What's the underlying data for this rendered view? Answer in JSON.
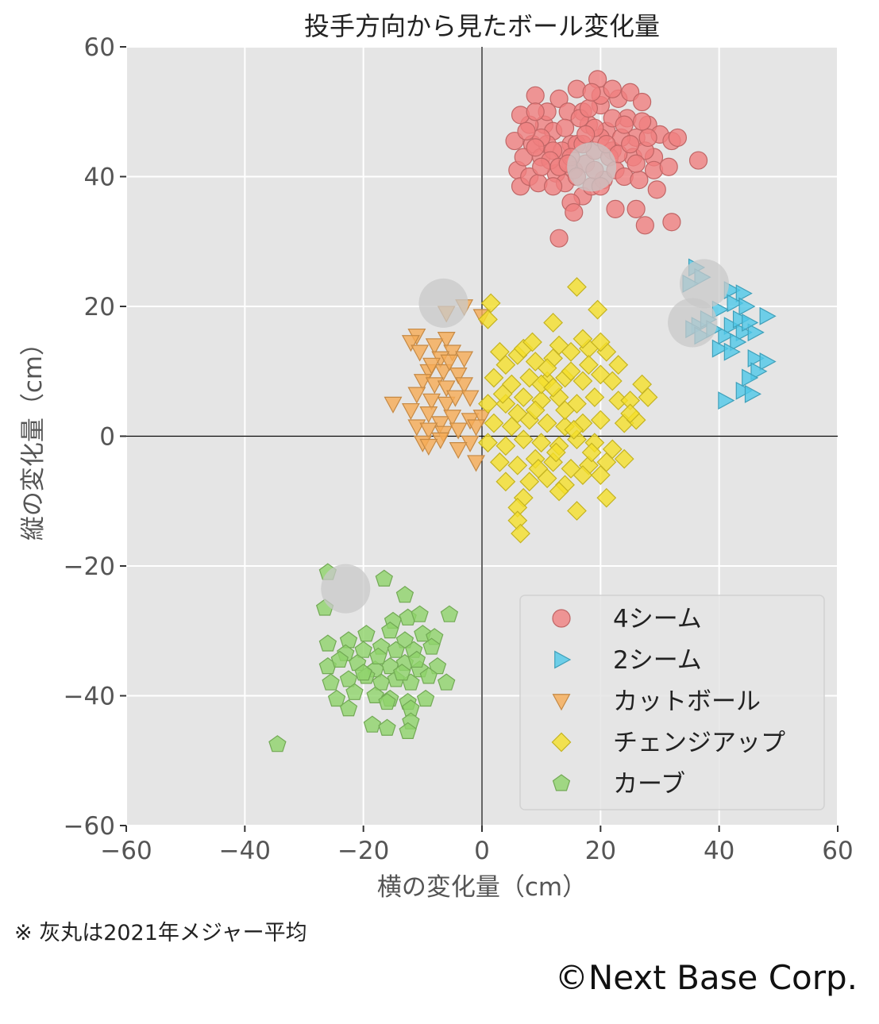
{
  "footnote": "※ 灰丸は2021年メジャー平均",
  "copyright": "©Next Base Corp.",
  "colors": {
    "panel_bg": "#e5e5e5",
    "grid": "#ffffff",
    "four_seam": "#f08080",
    "two_seam": "#4fc8e8",
    "cutter": "#f6ab55",
    "changeup": "#f5e02a",
    "curve": "#8fd36a",
    "league_avg": "#c8c8c8"
  },
  "chart_data": {
    "type": "scatter",
    "title": "投手方向から見たボール変化量",
    "xlabel": "横の変化量（cm）",
    "ylabel": "縦の変化量（cm）",
    "xlim": [
      -60,
      60
    ],
    "ylim": [
      -60,
      60
    ],
    "x_ticks": [
      "−60",
      "−40",
      "−20",
      "0",
      "20",
      "40",
      "60"
    ],
    "y_ticks": [
      "60",
      "40",
      "20",
      "0",
      "−20",
      "−40",
      "−60"
    ],
    "grid": true,
    "legend_position": "bottom-right",
    "series": [
      {
        "name": "4シーム",
        "marker": "circle",
        "color_key": "four_seam",
        "points": [
          [
            8.5,
            45
          ],
          [
            9,
            52.5
          ],
          [
            10.5,
            48
          ],
          [
            12,
            47
          ],
          [
            13,
            52
          ],
          [
            14.5,
            50
          ],
          [
            15,
            45
          ],
          [
            16,
            53.5
          ],
          [
            17,
            50
          ],
          [
            18,
            48
          ],
          [
            19.5,
            55
          ],
          [
            20,
            51
          ],
          [
            21,
            47
          ],
          [
            22,
            44
          ],
          [
            23,
            52
          ],
          [
            24.5,
            49
          ],
          [
            25,
            53
          ],
          [
            26,
            46
          ],
          [
            27,
            51.5
          ],
          [
            28,
            48
          ],
          [
            29,
            43
          ],
          [
            30,
            46.5
          ],
          [
            32,
            45.5
          ],
          [
            33,
            46
          ],
          [
            36.5,
            42.5
          ],
          [
            5.5,
            45.5
          ],
          [
            6,
            41
          ],
          [
            6.5,
            38.5
          ],
          [
            7,
            43
          ],
          [
            8,
            40
          ],
          [
            9.5,
            39
          ],
          [
            10,
            43
          ],
          [
            11,
            45
          ],
          [
            12.5,
            40.5
          ],
          [
            13.5,
            44
          ],
          [
            14,
            39
          ],
          [
            15.5,
            41
          ],
          [
            17,
            37
          ],
          [
            17.5,
            42
          ],
          [
            18.5,
            38.5
          ],
          [
            19,
            44
          ],
          [
            20.5,
            39.5
          ],
          [
            21.5,
            43
          ],
          [
            22.5,
            41
          ],
          [
            23.5,
            46
          ],
          [
            24,
            40
          ],
          [
            25.5,
            43
          ],
          [
            26.5,
            39.5
          ],
          [
            27.5,
            44
          ],
          [
            29,
            41
          ],
          [
            29.5,
            38
          ],
          [
            31.5,
            41.5
          ],
          [
            32,
            33
          ],
          [
            22.5,
            35
          ],
          [
            26,
            35
          ],
          [
            27.5,
            32.5
          ],
          [
            15,
            36
          ],
          [
            15.5,
            34.5
          ],
          [
            13,
            30.5
          ],
          [
            16.5,
            49
          ],
          [
            18,
            50.5
          ],
          [
            20,
            46
          ],
          [
            22,
            49
          ],
          [
            11,
            50
          ],
          [
            12,
            44
          ],
          [
            14,
            47.5
          ],
          [
            16,
            45
          ],
          [
            19,
            47.5
          ],
          [
            21,
            45
          ],
          [
            24,
            48
          ],
          [
            26,
            42
          ],
          [
            10,
            46
          ],
          [
            8,
            48
          ],
          [
            6.5,
            49.5
          ],
          [
            7.5,
            47
          ],
          [
            9,
            44.5
          ],
          [
            11.5,
            42.5
          ],
          [
            13,
            41.5
          ],
          [
            15,
            43
          ],
          [
            17,
            45
          ],
          [
            19,
            41
          ],
          [
            23,
            43.5
          ],
          [
            25,
            45
          ],
          [
            28,
            46
          ],
          [
            27,
            48.5
          ],
          [
            20,
            52.5
          ],
          [
            18.5,
            53
          ],
          [
            22,
            53.5
          ],
          [
            17.5,
            46.5
          ],
          [
            14.5,
            42
          ],
          [
            16,
            40
          ],
          [
            20,
            38.5
          ],
          [
            12,
            38.5
          ],
          [
            10,
            41.5
          ],
          [
            9,
            50
          ]
        ]
      },
      {
        "name": "2シーム",
        "marker": "triangle-right",
        "color_key": "two_seam",
        "points": [
          [
            36,
            26
          ],
          [
            37,
            24.5
          ],
          [
            35,
            23.5
          ],
          [
            42,
            22.5
          ],
          [
            44,
            22
          ],
          [
            42.5,
            20.5
          ],
          [
            40,
            19.5
          ],
          [
            44.5,
            20
          ],
          [
            48,
            18.5
          ],
          [
            36.5,
            17
          ],
          [
            38,
            18
          ],
          [
            42,
            17
          ],
          [
            44,
            16
          ],
          [
            46,
            16
          ],
          [
            41,
            15.5
          ],
          [
            43,
            14.5
          ],
          [
            40,
            13.5
          ],
          [
            42,
            13
          ],
          [
            46,
            12
          ],
          [
            48,
            11.5
          ],
          [
            46.5,
            10
          ],
          [
            45,
            9
          ],
          [
            44,
            7
          ],
          [
            45.5,
            6.5
          ],
          [
            41,
            5.5
          ],
          [
            35.5,
            16.5
          ],
          [
            37,
            15.5
          ],
          [
            39,
            16.5
          ],
          [
            43.5,
            18
          ],
          [
            45,
            17.5
          ]
        ]
      },
      {
        "name": "カットボール",
        "marker": "triangle-down",
        "color_key": "cutter",
        "points": [
          [
            -6,
            19
          ],
          [
            -3,
            20
          ],
          [
            0,
            18.5
          ],
          [
            -11,
            15.5
          ],
          [
            -12,
            14.5
          ],
          [
            -10.5,
            13
          ],
          [
            -8,
            14
          ],
          [
            -6,
            15
          ],
          [
            -5,
            13
          ],
          [
            -7,
            12
          ],
          [
            -9,
            10
          ],
          [
            -6.5,
            10
          ],
          [
            -4,
            9.5
          ],
          [
            -10,
            8.5
          ],
          [
            -8,
            8
          ],
          [
            -6,
            7.5
          ],
          [
            -3,
            8
          ],
          [
            -11,
            6.5
          ],
          [
            -8.5,
            5.5
          ],
          [
            -6,
            5
          ],
          [
            -4.5,
            6
          ],
          [
            -2,
            6
          ],
          [
            -15,
            5
          ],
          [
            -12,
            4
          ],
          [
            -9,
            3.5
          ],
          [
            -7,
            2
          ],
          [
            -5,
            3
          ],
          [
            -2,
            2.5
          ],
          [
            0,
            3
          ],
          [
            -11,
            1.5
          ],
          [
            -9,
            1
          ],
          [
            -6.5,
            0.5
          ],
          [
            -4,
            1
          ],
          [
            -1,
            1.5
          ],
          [
            -10,
            -1
          ],
          [
            -7,
            -0.5
          ],
          [
            -2,
            -1
          ],
          [
            -9,
            -1.5
          ],
          [
            -4,
            -2
          ],
          [
            -1,
            -4
          ],
          [
            -8.5,
            11
          ],
          [
            -5.5,
            11.5
          ],
          [
            -3,
            12
          ]
        ]
      },
      {
        "name": "チェンジアップ",
        "marker": "diamond",
        "color_key": "changeup",
        "points": [
          [
            1.5,
            20.5
          ],
          [
            16,
            23
          ],
          [
            12,
            17.5
          ],
          [
            19.5,
            19.5
          ],
          [
            1,
            18
          ],
          [
            3,
            13
          ],
          [
            6,
            12.5
          ],
          [
            9,
            11.5
          ],
          [
            12,
            12
          ],
          [
            15,
            13
          ],
          [
            18,
            13.5
          ],
          [
            21,
            13
          ],
          [
            2,
            9
          ],
          [
            5,
            8
          ],
          [
            8,
            9
          ],
          [
            11,
            8.5
          ],
          [
            14,
            9
          ],
          [
            17,
            8.5
          ],
          [
            20,
            9.5
          ],
          [
            22,
            8.5
          ],
          [
            1,
            5
          ],
          [
            4,
            5
          ],
          [
            7,
            6
          ],
          [
            10,
            5.5
          ],
          [
            13,
            6
          ],
          [
            16,
            5
          ],
          [
            19,
            6
          ],
          [
            23,
            5.5
          ],
          [
            25,
            5.5
          ],
          [
            28,
            6
          ],
          [
            2,
            2
          ],
          [
            5,
            1.5
          ],
          [
            8,
            2.5
          ],
          [
            11,
            2
          ],
          [
            14,
            1.5
          ],
          [
            17,
            2
          ],
          [
            20,
            2.5
          ],
          [
            24,
            2
          ],
          [
            26,
            2.5
          ],
          [
            1,
            -1
          ],
          [
            4,
            -1.5
          ],
          [
            7,
            -0.5
          ],
          [
            10,
            -1
          ],
          [
            13,
            -1.5
          ],
          [
            16,
            -0.5
          ],
          [
            19,
            -1
          ],
          [
            22,
            -2
          ],
          [
            3,
            -4
          ],
          [
            6,
            -4.5
          ],
          [
            9,
            -3.5
          ],
          [
            12,
            -4
          ],
          [
            15,
            -5
          ],
          [
            18,
            -4.5
          ],
          [
            21,
            -4
          ],
          [
            24,
            -3.5
          ],
          [
            4,
            -7
          ],
          [
            8,
            -7
          ],
          [
            11,
            -6.5
          ],
          [
            14,
            -7.5
          ],
          [
            17,
            -6
          ],
          [
            20,
            -6
          ],
          [
            7,
            -9.5
          ],
          [
            13,
            -8.5
          ],
          [
            21,
            -9.5
          ],
          [
            16,
            -11.5
          ],
          [
            6,
            -11
          ],
          [
            6,
            -13
          ],
          [
            6.5,
            -15
          ],
          [
            10,
            8
          ],
          [
            12,
            7.5
          ],
          [
            14,
            4
          ],
          [
            9,
            4
          ],
          [
            6,
            3.5
          ],
          [
            15,
            10
          ],
          [
            18,
            11
          ],
          [
            11,
            10.5
          ],
          [
            4,
            11
          ],
          [
            7,
            13.5
          ],
          [
            13,
            14
          ],
          [
            17,
            15
          ],
          [
            20,
            14.5
          ],
          [
            15.5,
            1
          ],
          [
            12.5,
            -2.5
          ],
          [
            9.5,
            -5
          ],
          [
            18.5,
            -2.5
          ],
          [
            3.5,
            6.5
          ],
          [
            23,
            11
          ],
          [
            25,
            3.5
          ],
          [
            27,
            8
          ],
          [
            8.5,
            14.5
          ]
        ]
      },
      {
        "name": "カーブ",
        "marker": "pentagon",
        "color_key": "curve",
        "points": [
          [
            -26,
            -21
          ],
          [
            -16.5,
            -22
          ],
          [
            -13,
            -24.5
          ],
          [
            -26.5,
            -26.5
          ],
          [
            -5.5,
            -27.5
          ],
          [
            -15,
            -28.5
          ],
          [
            -12.5,
            -28
          ],
          [
            -10.5,
            -27.5
          ],
          [
            -26,
            -32
          ],
          [
            -22.5,
            -31.5
          ],
          [
            -19.5,
            -30.5
          ],
          [
            -15.5,
            -30
          ],
          [
            -13,
            -31.5
          ],
          [
            -10,
            -30.5
          ],
          [
            -8,
            -31
          ],
          [
            -23,
            -33.5
          ],
          [
            -20,
            -33
          ],
          [
            -17,
            -32.5
          ],
          [
            -14.5,
            -33
          ],
          [
            -11.5,
            -33
          ],
          [
            -8.5,
            -32.5
          ],
          [
            -26,
            -35.5
          ],
          [
            -24,
            -34.5
          ],
          [
            -21,
            -35
          ],
          [
            -18,
            -36
          ],
          [
            -15.5,
            -35.5
          ],
          [
            -13,
            -35
          ],
          [
            -10.5,
            -36
          ],
          [
            -7.5,
            -35.5
          ],
          [
            -25.5,
            -38
          ],
          [
            -22.5,
            -37.5
          ],
          [
            -19.5,
            -37
          ],
          [
            -17,
            -38
          ],
          [
            -14.5,
            -37.5
          ],
          [
            -12,
            -38
          ],
          [
            -9,
            -37
          ],
          [
            -6,
            -38
          ],
          [
            -24.5,
            -40.5
          ],
          [
            -21.5,
            -39.5
          ],
          [
            -18,
            -40
          ],
          [
            -15.5,
            -40.5
          ],
          [
            -12.5,
            -41
          ],
          [
            -9.5,
            -40.5
          ],
          [
            -22.5,
            -42
          ],
          [
            -16,
            -41
          ],
          [
            -12,
            -42
          ],
          [
            -18.5,
            -44.5
          ],
          [
            -16,
            -45
          ],
          [
            -12,
            -44
          ],
          [
            -12.5,
            -45.5
          ],
          [
            -34.5,
            -47.5
          ],
          [
            -20,
            -36.5
          ],
          [
            -13.5,
            -36.5
          ],
          [
            -17.5,
            -34
          ],
          [
            -11,
            -34.5
          ]
        ]
      }
    ],
    "league_averages": [
      [
        18.5,
        41.5
      ],
      [
        37.5,
        23.5
      ],
      [
        35.5,
        17.5
      ],
      [
        -6.5,
        20.5
      ],
      [
        -23,
        -23.5
      ]
    ],
    "reference_lines": {
      "x": 0,
      "y": 0
    }
  }
}
